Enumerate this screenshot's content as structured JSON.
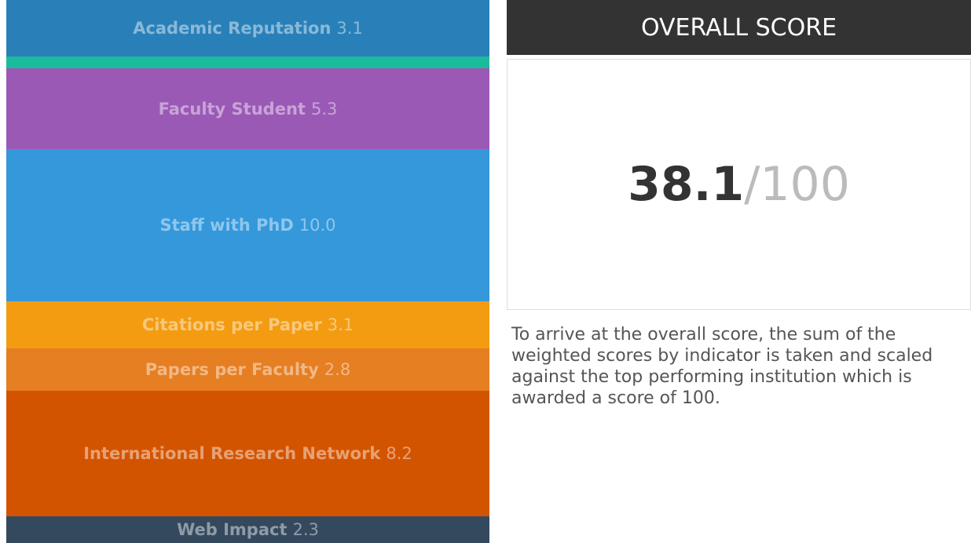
{
  "indicators": [
    {
      "name": "Academic Reputation",
      "score": "3.1"
    },
    {
      "name": "Faculty Student",
      "score": "5.3"
    },
    {
      "name": "Staff with PhD",
      "score": "10.0"
    },
    {
      "name": "Citations per Paper",
      "score": "3.1"
    },
    {
      "name": "Papers per Faculty",
      "score": "2.8"
    },
    {
      "name": "International Research Network",
      "score": "8.2"
    },
    {
      "name": "Web Impact",
      "score": "2.3"
    }
  ],
  "overall": {
    "title": "OVERALL SCORE",
    "score": "38.1",
    "out_of": "/100",
    "note": "To arrive at the overall score, the sum of the weighted scores by indicator is taken and scaled against the top performing institution which is awarded a score of 100."
  }
}
